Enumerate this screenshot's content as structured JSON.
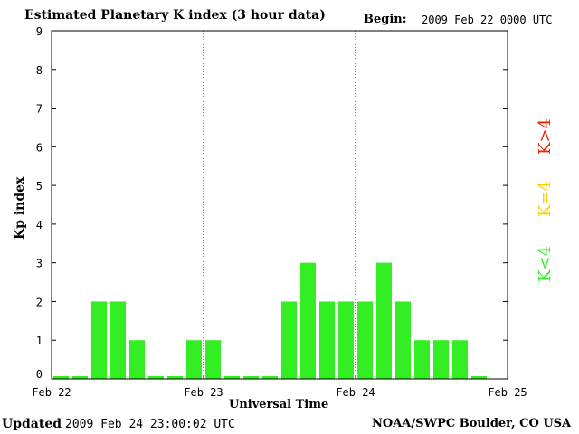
{
  "header": {
    "title": "Estimated Planetary K index (3 hour data)",
    "begin_label": "Begin:",
    "begin_value": "2009 Feb 22 0000 UTC"
  },
  "footer": {
    "updated_label": "Updated",
    "updated_value": "2009 Feb 24 23:00:02 UTC",
    "credit": "NOAA/SWPC Boulder, CO USA"
  },
  "legend": {
    "low": {
      "label": "K<4",
      "color": "#33ee22"
    },
    "mid": {
      "label": "K=4",
      "color": "#ffcc00"
    },
    "high": {
      "label": "K>4",
      "color": "#ee2200"
    }
  },
  "chart_data": {
    "type": "bar",
    "title": "Estimated Planetary K index (3 hour data)",
    "xlabel": "Universal Time",
    "ylabel": "Kp index",
    "ylim": [
      0,
      9
    ],
    "yticks": [
      0,
      1,
      2,
      3,
      4,
      5,
      6,
      7,
      8,
      9
    ],
    "xticks": [
      "Feb 22",
      "Feb 23",
      "Feb 24",
      "Feb 25"
    ],
    "day_dividers": [
      "Feb 23",
      "Feb 24"
    ],
    "bar_color": "#33ee22",
    "categories": [
      "Feb 22 00",
      "Feb 22 03",
      "Feb 22 06",
      "Feb 22 09",
      "Feb 22 12",
      "Feb 22 15",
      "Feb 22 18",
      "Feb 22 21",
      "Feb 23 00",
      "Feb 23 03",
      "Feb 23 06",
      "Feb 23 09",
      "Feb 23 12",
      "Feb 23 15",
      "Feb 23 18",
      "Feb 23 21",
      "Feb 24 00",
      "Feb 24 03",
      "Feb 24 06",
      "Feb 24 09",
      "Feb 24 12",
      "Feb 24 15",
      "Feb 24 18",
      "Feb 24 21"
    ],
    "values": [
      0,
      0,
      2,
      2,
      1,
      0,
      0,
      1,
      1,
      0,
      0,
      0,
      2,
      3,
      2,
      2,
      2,
      3,
      2,
      1,
      1,
      1,
      0,
      null
    ]
  }
}
